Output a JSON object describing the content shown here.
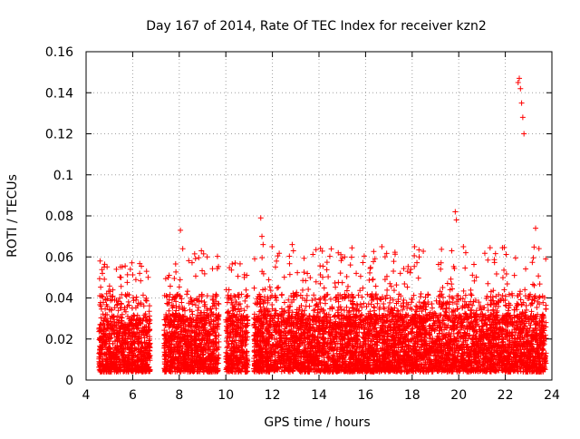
{
  "chart_data": {
    "type": "scatter",
    "title": "Day 167 of 2014, Rate Of TEC Index for receiver kzn2",
    "xlabel": "GPS time / hours",
    "ylabel": "ROTI / TECUs",
    "xlim": [
      4,
      24
    ],
    "ylim": [
      0,
      0.16
    ],
    "xticks": [
      "4",
      "6",
      "8",
      "10",
      "12",
      "14",
      "16",
      "18",
      "20",
      "22",
      "24"
    ],
    "yticks": [
      "0",
      "0.02",
      "0.04",
      "0.06",
      "0.08",
      "0.1",
      "0.12",
      "0.14",
      "0.16"
    ],
    "grid": true,
    "marker": "+",
    "color": "#ff0000",
    "series": [
      {
        "name": "ROTI",
        "segments": [
          {
            "x_range": [
              4.55,
              6.75
            ],
            "low": 0.004,
            "mid": 0.018,
            "high": 0.058
          },
          {
            "x_range": [
              7.35,
              9.7
            ],
            "low": 0.004,
            "mid": 0.02,
            "high": 0.064
          },
          {
            "x_range": [
              10.0,
              10.95
            ],
            "low": 0.004,
            "mid": 0.02,
            "high": 0.057
          },
          {
            "x_range": [
              11.2,
              23.75
            ],
            "low": 0.004,
            "mid": 0.02,
            "high": 0.065
          }
        ],
        "x": [
          4.6,
          4.7,
          5.3,
          5.5,
          5.9,
          6.3,
          8.05,
          8.15,
          8.95,
          9.2,
          10.4,
          11.5,
          11.55,
          11.6,
          12.85,
          12.9,
          15.1,
          16.7,
          18.1,
          18.3,
          19.7,
          19.85,
          19.9,
          20.2,
          22.55,
          22.6,
          22.65,
          22.7,
          22.75,
          22.8,
          23.3
        ],
        "y": [
          0.058,
          0.052,
          0.054,
          0.05,
          0.054,
          0.052,
          0.073,
          0.064,
          0.063,
          0.06,
          0.057,
          0.079,
          0.07,
          0.066,
          0.066,
          0.063,
          0.06,
          0.065,
          0.065,
          0.06,
          0.063,
          0.082,
          0.078,
          0.065,
          0.145,
          0.147,
          0.142,
          0.135,
          0.128,
          0.12,
          0.074
        ]
      }
    ]
  }
}
